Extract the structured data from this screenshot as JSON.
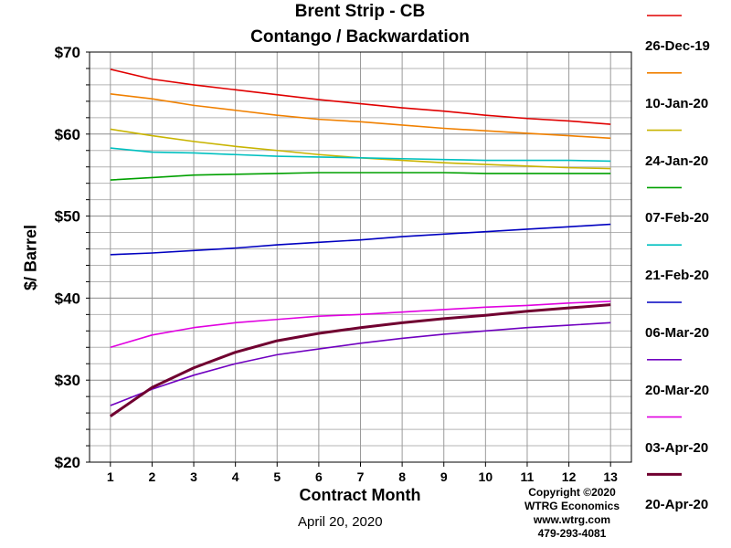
{
  "chart_data": {
    "type": "line",
    "title": "Brent Strip - CB",
    "subtitle": "Contango / Backwardation",
    "xlabel": "Contract Month",
    "ylabel": "$/ Barrel",
    "x": [
      1,
      2,
      3,
      4,
      5,
      6,
      7,
      8,
      9,
      10,
      11,
      12,
      13
    ],
    "xlim": [
      0.5,
      13.5
    ],
    "ylim": [
      20,
      70
    ],
    "yticks": [
      20,
      30,
      40,
      50,
      60,
      70
    ],
    "ytick_labels": [
      "$20",
      "$30",
      "$40",
      "$50",
      "$60",
      "$70"
    ],
    "grid": true,
    "legend_position": "right",
    "series": [
      {
        "name": "26-Dec-19",
        "color": "#e00000",
        "width": 1.6,
        "values": [
          67.9,
          66.7,
          66.0,
          65.4,
          64.8,
          64.2,
          63.7,
          63.2,
          62.8,
          62.3,
          61.9,
          61.6,
          61.2
        ]
      },
      {
        "name": "10-Jan-20",
        "color": "#f08000",
        "width": 1.6,
        "values": [
          64.9,
          64.3,
          63.5,
          62.9,
          62.3,
          61.8,
          61.5,
          61.1,
          60.7,
          60.4,
          60.1,
          59.8,
          59.5
        ]
      },
      {
        "name": "24-Jan-20",
        "color": "#c8b400",
        "width": 1.6,
        "values": [
          60.6,
          59.8,
          59.1,
          58.5,
          58.0,
          57.5,
          57.1,
          56.8,
          56.5,
          56.3,
          56.1,
          55.9,
          55.8
        ]
      },
      {
        "name": "07-Feb-20",
        "color": "#00a000",
        "width": 1.6,
        "values": [
          54.4,
          54.7,
          55.0,
          55.1,
          55.2,
          55.3,
          55.3,
          55.3,
          55.3,
          55.2,
          55.2,
          55.2,
          55.2
        ]
      },
      {
        "name": "21-Feb-20",
        "color": "#00c0c0",
        "width": 1.6,
        "values": [
          58.3,
          57.8,
          57.7,
          57.5,
          57.3,
          57.2,
          57.1,
          57.0,
          56.9,
          56.8,
          56.8,
          56.8,
          56.7
        ]
      },
      {
        "name": "06-Mar-20",
        "color": "#0000c0",
        "width": 1.6,
        "values": [
          45.3,
          45.5,
          45.8,
          46.1,
          46.5,
          46.8,
          47.1,
          47.5,
          47.8,
          48.1,
          48.4,
          48.7,
          49.0
        ]
      },
      {
        "name": "20-Mar-20",
        "color": "#7000c0",
        "width": 1.6,
        "values": [
          26.9,
          28.9,
          30.6,
          32.0,
          33.1,
          33.8,
          34.5,
          35.1,
          35.6,
          36.0,
          36.4,
          36.7,
          37.0
        ]
      },
      {
        "name": "03-Apr-20",
        "color": "#e000e0",
        "width": 1.6,
        "values": [
          34.0,
          35.5,
          36.4,
          37.0,
          37.4,
          37.8,
          38.0,
          38.3,
          38.6,
          38.9,
          39.1,
          39.4,
          39.6
        ]
      },
      {
        "name": "20-Apr-20",
        "color": "#700030",
        "width": 3,
        "values": [
          25.6,
          29.1,
          31.5,
          33.4,
          34.8,
          35.7,
          36.4,
          37.0,
          37.5,
          37.9,
          38.4,
          38.8,
          39.2
        ]
      }
    ]
  },
  "footer": {
    "date_note": "April 20, 2020",
    "copyright": "Copyright ©2020",
    "company": "WTRG Economics",
    "website": "www.wtrg.com",
    "phone": "479-293-4081"
  }
}
